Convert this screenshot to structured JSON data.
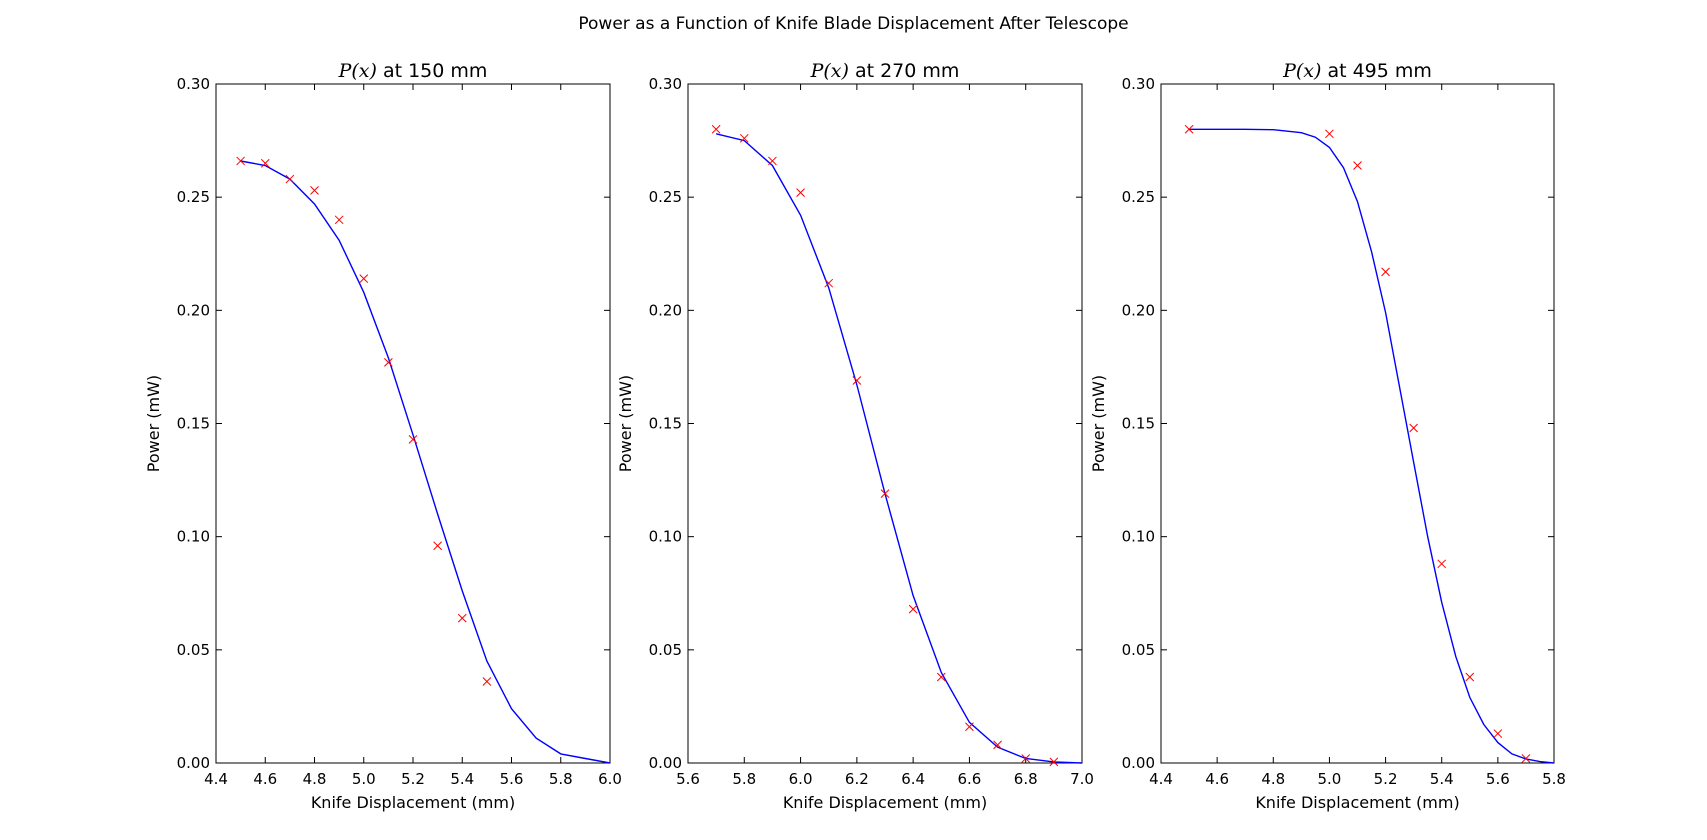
{
  "figure": {
    "title": "Power as a Function of Knife Blade Displacement After Telescope"
  },
  "colors": {
    "fit": "#0000ff",
    "data": "#ff0000",
    "axes": "#000000"
  },
  "chart_data": [
    {
      "type": "scatter",
      "title_math": "P(x)",
      "title_text": " at 150 mm",
      "xlabel": "Knife Displacement (mm)",
      "ylabel": "Power (mW)",
      "xlim": [
        4.4,
        6.0
      ],
      "ylim": [
        0.0,
        0.3
      ],
      "xticks": [
        "4.4",
        "4.6",
        "4.8",
        "5.0",
        "5.2",
        "5.4",
        "5.6",
        "5.8",
        "6.0"
      ],
      "yticks": [
        "0.00",
        "0.05",
        "0.10",
        "0.15",
        "0.20",
        "0.25",
        "0.30"
      ],
      "grid": false,
      "series": [
        {
          "marker": "x",
          "x": [
            4.5,
            4.6,
            4.7,
            4.8,
            4.9,
            5.0,
            5.1,
            5.2,
            5.3,
            5.4,
            5.5
          ],
          "y": [
            0.266,
            0.265,
            0.258,
            0.253,
            0.24,
            0.214,
            0.177,
            0.143,
            0.096,
            0.064,
            0.036
          ]
        },
        {
          "style": "line",
          "x": [
            4.5,
            4.6,
            4.7,
            4.8,
            4.9,
            5.0,
            5.1,
            5.2,
            5.3,
            5.4,
            5.5,
            5.6,
            5.7,
            5.8,
            5.9,
            6.0
          ],
          "y": [
            0.266,
            0.264,
            0.258,
            0.247,
            0.231,
            0.208,
            0.179,
            0.145,
            0.11,
            0.076,
            0.045,
            0.024,
            0.011,
            0.004,
            0.002,
            0.0
          ]
        }
      ]
    },
    {
      "type": "scatter",
      "title_math": "P(x)",
      "title_text": " at 270 mm",
      "xlabel": "Knife Displacement (mm)",
      "ylabel": "Power (mW)",
      "xlim": [
        5.6,
        7.0
      ],
      "ylim": [
        0.0,
        0.3
      ],
      "xticks": [
        "5.6",
        "5.8",
        "6.0",
        "6.2",
        "6.4",
        "6.6",
        "6.8",
        "7.0"
      ],
      "yticks": [
        "0.00",
        "0.05",
        "0.10",
        "0.15",
        "0.20",
        "0.25",
        "0.30"
      ],
      "grid": false,
      "series": [
        {
          "marker": "x",
          "x": [
            5.7,
            5.8,
            5.9,
            6.0,
            6.1,
            6.2,
            6.3,
            6.4,
            6.5,
            6.6,
            6.7,
            6.8,
            6.9
          ],
          "y": [
            0.28,
            0.276,
            0.266,
            0.252,
            0.212,
            0.169,
            0.119,
            0.068,
            0.038,
            0.016,
            0.008,
            0.002,
            0.0005
          ]
        },
        {
          "style": "line",
          "x": [
            5.7,
            5.8,
            5.9,
            6.0,
            6.1,
            6.2,
            6.3,
            6.4,
            6.5,
            6.6,
            6.7,
            6.8,
            6.9,
            7.0
          ],
          "y": [
            0.278,
            0.275,
            0.264,
            0.242,
            0.21,
            0.167,
            0.119,
            0.074,
            0.04,
            0.018,
            0.007,
            0.002,
            0.0005,
            0.0
          ]
        }
      ]
    },
    {
      "type": "scatter",
      "title_math": "P(x)",
      "title_text": " at 495 mm",
      "xlabel": "Knife Displacement (mm)",
      "ylabel": "Power (mW)",
      "xlim": [
        4.4,
        5.8
      ],
      "ylim": [
        0.0,
        0.3
      ],
      "xticks": [
        "4.4",
        "4.6",
        "4.8",
        "5.0",
        "5.2",
        "5.4",
        "5.6",
        "5.8"
      ],
      "yticks": [
        "0.00",
        "0.05",
        "0.10",
        "0.15",
        "0.20",
        "0.25",
        "0.30"
      ],
      "grid": false,
      "series": [
        {
          "marker": "x",
          "x": [
            4.5,
            5.0,
            5.1,
            5.2,
            5.3,
            5.4,
            5.5,
            5.6,
            5.7
          ],
          "y": [
            0.28,
            0.278,
            0.264,
            0.217,
            0.148,
            0.088,
            0.038,
            0.013,
            0.002
          ]
        },
        {
          "style": "line",
          "x": [
            4.5,
            4.7,
            4.8,
            4.9,
            4.95,
            5.0,
            5.05,
            5.1,
            5.15,
            5.2,
            5.25,
            5.3,
            5.35,
            5.4,
            5.45,
            5.5,
            5.55,
            5.6,
            5.65,
            5.7,
            5.75,
            5.8
          ],
          "y": [
            0.28,
            0.28,
            0.2798,
            0.2785,
            0.2765,
            0.272,
            0.263,
            0.248,
            0.226,
            0.199,
            0.166,
            0.133,
            0.1,
            0.071,
            0.047,
            0.029,
            0.017,
            0.009,
            0.004,
            0.0018,
            0.0006,
            0.0
          ]
        }
      ]
    }
  ]
}
